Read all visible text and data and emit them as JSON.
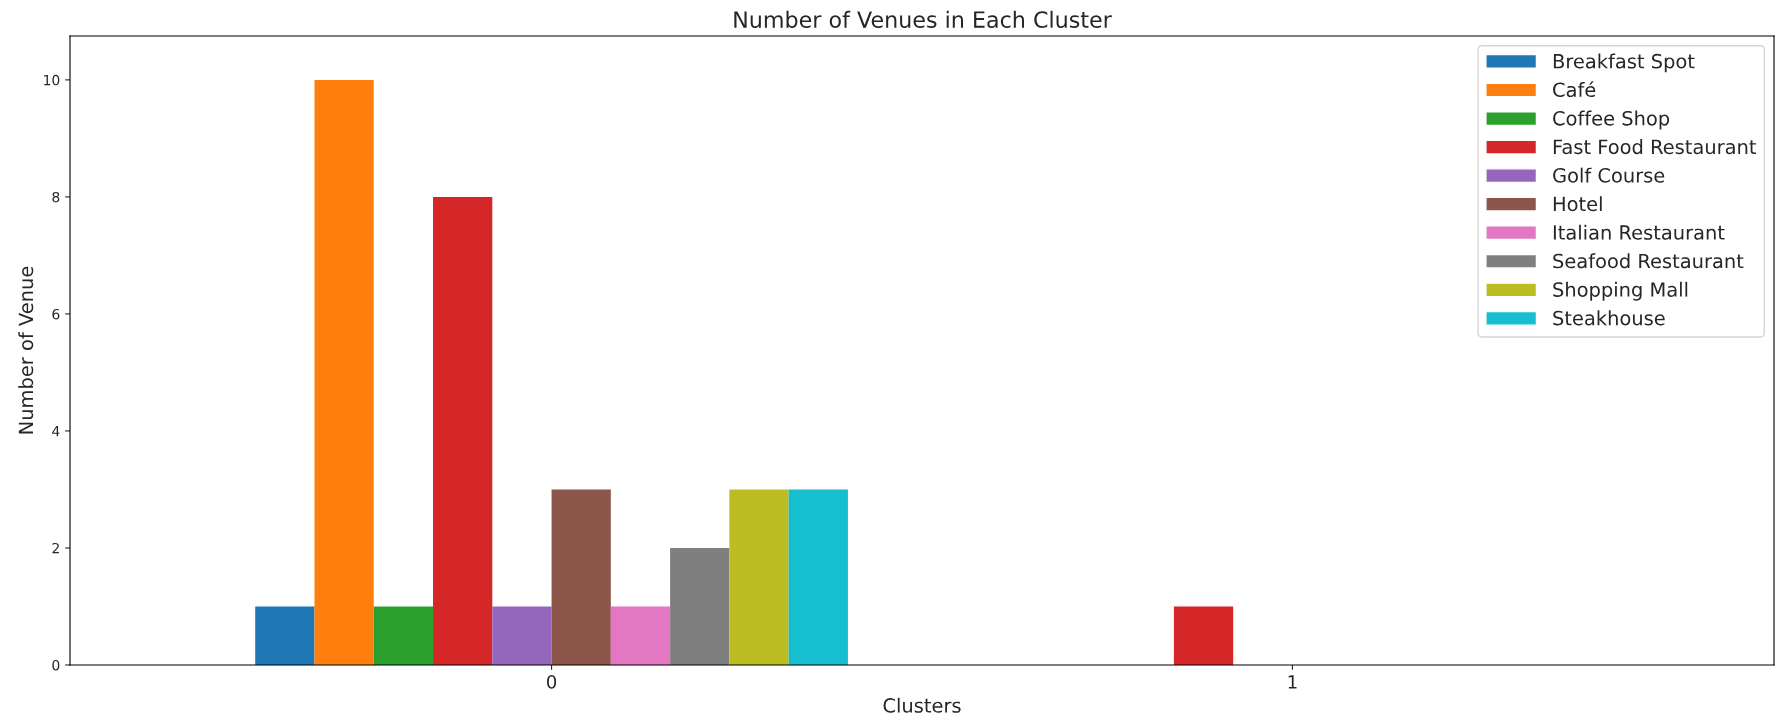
{
  "chart_data": {
    "type": "bar",
    "title": "Number of Venues in Each Cluster",
    "xlabel": "Clusters",
    "ylabel": "Number of Venue",
    "categories": [
      "0",
      "1"
    ],
    "series": [
      {
        "name": "Breakfast Spot",
        "color": "#1f77b4",
        "values": [
          1,
          null
        ]
      },
      {
        "name": "Café",
        "color": "#ff7f0e",
        "values": [
          10,
          null
        ]
      },
      {
        "name": "Coffee Shop",
        "color": "#2ca02c",
        "values": [
          1,
          null
        ]
      },
      {
        "name": "Fast Food Restaurant",
        "color": "#d62728",
        "values": [
          8,
          1
        ]
      },
      {
        "name": "Golf Course",
        "color": "#9467bd",
        "values": [
          1,
          null
        ]
      },
      {
        "name": "Hotel",
        "color": "#8c564b",
        "values": [
          3,
          null
        ]
      },
      {
        "name": "Italian Restaurant",
        "color": "#e377c2",
        "values": [
          1,
          null
        ]
      },
      {
        "name": "Seafood Restaurant",
        "color": "#7f7f7f",
        "values": [
          2,
          null
        ]
      },
      {
        "name": "Shopping Mall",
        "color": "#bcbd22",
        "values": [
          3,
          null
        ]
      },
      {
        "name": "Steakhouse",
        "color": "#17becf",
        "values": [
          3,
          null
        ]
      }
    ],
    "ylim": [
      0,
      10.75
    ],
    "yticks": [
      0,
      2,
      4,
      6,
      8,
      10
    ],
    "grid": false,
    "legend": "top right"
  }
}
